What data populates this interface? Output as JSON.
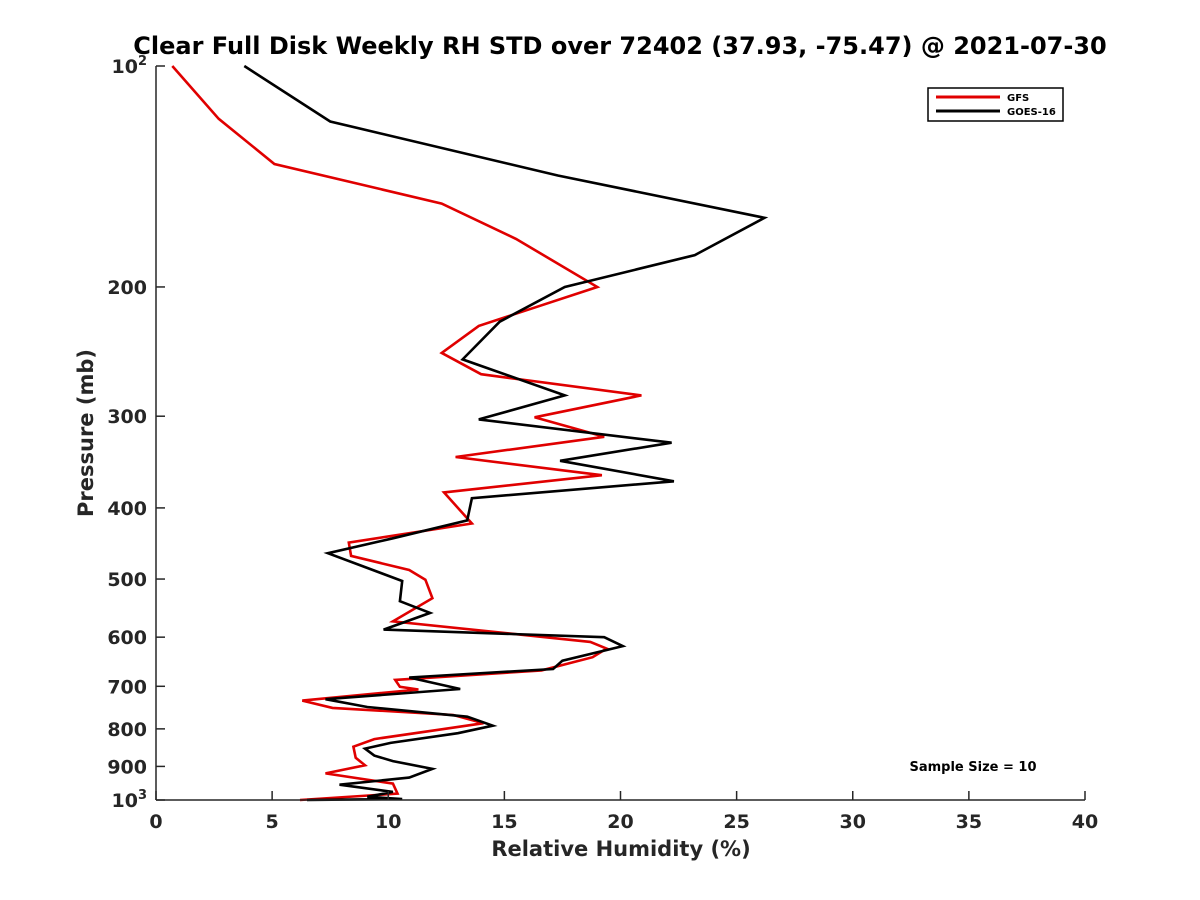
{
  "chart_data": {
    "type": "line",
    "title": "Clear Full Disk Weekly RH STD over 72402 (37.93, -75.47) @ 2021-07-30",
    "xlabel": "Relative Humidity (%)",
    "ylabel": "Pressure (mb)",
    "xlim": [
      0,
      40
    ],
    "ylim": [
      100,
      1000
    ],
    "y_scale": "log",
    "y_reversed": true,
    "x_ticks": [
      0,
      5,
      10,
      15,
      20,
      25,
      30,
      35,
      40
    ],
    "x_tick_labels": [
      "0",
      "5",
      "10",
      "15",
      "20",
      "25",
      "30",
      "35",
      "40"
    ],
    "y_ticks": [
      {
        "value": 100,
        "base": "10",
        "exp": "2"
      },
      {
        "value": 200,
        "label": "200"
      },
      {
        "value": 300,
        "label": "300"
      },
      {
        "value": 400,
        "label": "400"
      },
      {
        "value": 500,
        "label": "500"
      },
      {
        "value": 600,
        "label": "600"
      },
      {
        "value": 700,
        "label": "700"
      },
      {
        "value": 800,
        "label": "800"
      },
      {
        "value": 900,
        "label": "900"
      },
      {
        "value": 1000,
        "base": "10",
        "exp": "3"
      }
    ],
    "legend": {
      "location": "top-right",
      "entries": [
        "GFS",
        "GOES-16"
      ]
    },
    "annotation": "Sample Size = 10",
    "colors": {
      "GFS": "#e00000",
      "GOES-16": "#000000"
    },
    "series": [
      {
        "name": "GFS",
        "color": "#e00000",
        "points": [
          [
            0.7,
            100
          ],
          [
            2.7,
            118
          ],
          [
            5.1,
            136
          ],
          [
            12.3,
            154
          ],
          [
            15.5,
            172
          ],
          [
            19.0,
            200
          ],
          [
            13.9,
            226
          ],
          [
            12.3,
            246
          ],
          [
            14.0,
            263
          ],
          [
            20.9,
            281
          ],
          [
            16.3,
            301
          ],
          [
            19.3,
            320
          ],
          [
            12.9,
            341
          ],
          [
            19.2,
            361
          ],
          [
            12.4,
            381
          ],
          [
            13.6,
            420
          ],
          [
            8.3,
            446
          ],
          [
            8.4,
            465
          ],
          [
            10.9,
            486
          ],
          [
            11.6,
            501
          ],
          [
            11.9,
            531
          ],
          [
            10.2,
            571
          ],
          [
            18.7,
            609
          ],
          [
            19.4,
            622
          ],
          [
            18.8,
            639
          ],
          [
            16.6,
            666
          ],
          [
            10.3,
            686
          ],
          [
            10.5,
            701
          ],
          [
            11.3,
            707
          ],
          [
            6.3,
            732
          ],
          [
            7.6,
            749
          ],
          [
            12.8,
            766
          ],
          [
            14.1,
            786
          ],
          [
            12.3,
            801
          ],
          [
            9.4,
            826
          ],
          [
            8.5,
            846
          ],
          [
            8.6,
            876
          ],
          [
            9.0,
            897
          ],
          [
            7.3,
            920
          ],
          [
            10.2,
            950
          ],
          [
            10.4,
            980
          ],
          [
            6.2,
            1000
          ]
        ]
      },
      {
        "name": "GOES-16",
        "color": "#000000",
        "points": [
          [
            3.8,
            100
          ],
          [
            7.5,
            119
          ],
          [
            17.3,
            141
          ],
          [
            26.2,
            161
          ],
          [
            23.2,
            181
          ],
          [
            17.6,
            200
          ],
          [
            14.8,
            223
          ],
          [
            13.2,
            251
          ],
          [
            17.6,
            281
          ],
          [
            13.9,
            303
          ],
          [
            22.2,
            326
          ],
          [
            17.4,
            345
          ],
          [
            22.3,
            368
          ],
          [
            13.6,
            388
          ],
          [
            13.4,
            416
          ],
          [
            10.2,
            440
          ],
          [
            7.4,
            461
          ],
          [
            10.6,
            503
          ],
          [
            10.5,
            536
          ],
          [
            11.8,
            556
          ],
          [
            9.8,
            586
          ],
          [
            19.3,
            600
          ],
          [
            20.1,
            617
          ],
          [
            17.5,
            646
          ],
          [
            17.1,
            663
          ],
          [
            10.9,
            681
          ],
          [
            13.1,
            706
          ],
          [
            7.3,
            729
          ],
          [
            9.1,
            747
          ],
          [
            13.4,
            770
          ],
          [
            14.5,
            792
          ],
          [
            13.0,
            811
          ],
          [
            10.1,
            836
          ],
          [
            9.0,
            851
          ],
          [
            9.4,
            870
          ],
          [
            10.2,
            885
          ],
          [
            11.9,
            907
          ],
          [
            10.9,
            932
          ],
          [
            7.9,
            953
          ],
          [
            10.2,
            975
          ],
          [
            9.1,
            990
          ],
          [
            10.6,
            997
          ],
          [
            6.5,
            1000
          ]
        ]
      }
    ]
  }
}
